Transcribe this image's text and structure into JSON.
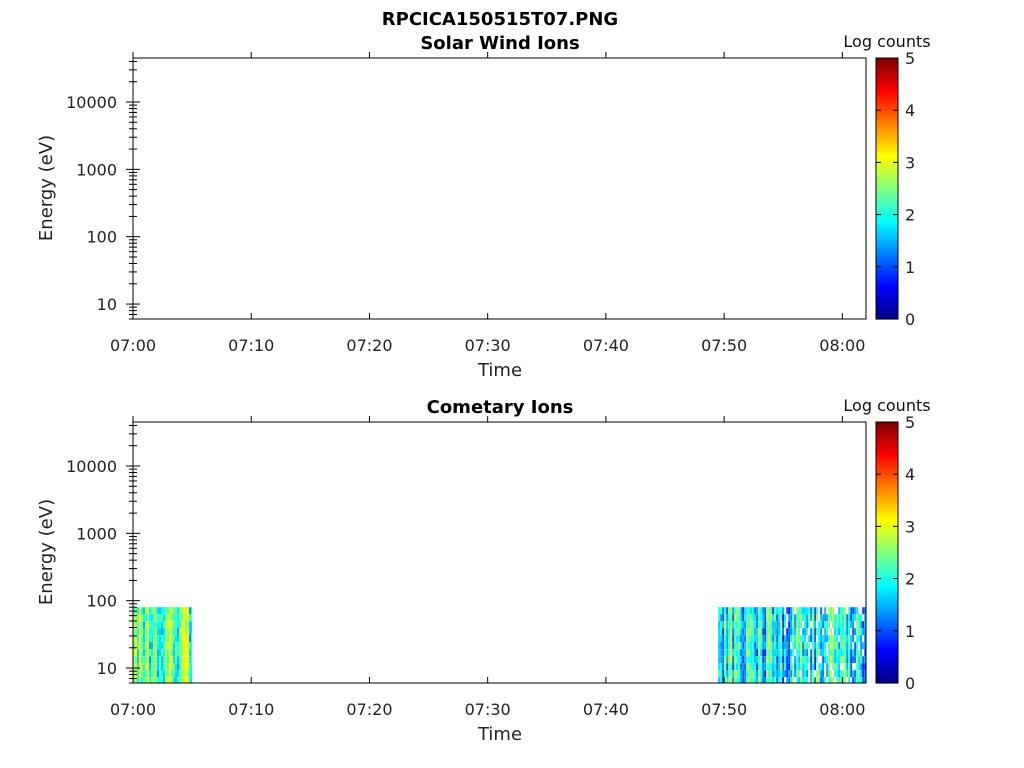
{
  "figure": {
    "title": "RPCICA150515T07.PNG"
  },
  "colormap": {
    "name": "jet",
    "stops": [
      "#000080",
      "#0000ff",
      "#00ffff",
      "#ffff00",
      "#ff0000",
      "#800000"
    ]
  },
  "chart_data": [
    {
      "type": "heatmap",
      "title": "Solar Wind Ions",
      "xlabel": "Time",
      "ylabel": "Energy (eV)",
      "xlim": [
        "07:00",
        "08:02"
      ],
      "x_ticks": [
        "07:00",
        "07:10",
        "07:20",
        "07:30",
        "07:40",
        "07:50",
        "08:00"
      ],
      "y_scale": "log",
      "ylim": [
        6,
        45000
      ],
      "y_ticks": [
        10,
        100,
        1000,
        10000
      ],
      "y_tick_labels": [
        "10",
        "100",
        "1000",
        "10000"
      ],
      "colorbar": {
        "title": "Log counts",
        "range": [
          0,
          5
        ],
        "ticks": [
          "0",
          "1",
          "2",
          "3",
          "4",
          "5"
        ]
      },
      "data_blocks": []
    },
    {
      "type": "heatmap",
      "title": "Cometary Ions",
      "xlabel": "Time",
      "ylabel": "Energy (eV)",
      "xlim": [
        "07:00",
        "08:02"
      ],
      "x_ticks": [
        "07:00",
        "07:10",
        "07:20",
        "07:30",
        "07:40",
        "07:50",
        "08:00"
      ],
      "y_scale": "log",
      "ylim": [
        6,
        45000
      ],
      "y_ticks": [
        10,
        100,
        1000,
        10000
      ],
      "y_tick_labels": [
        "10",
        "100",
        "1000",
        "10000"
      ],
      "colorbar": {
        "title": "Log counts",
        "range": [
          0,
          5
        ],
        "ticks": [
          "0",
          "1",
          "2",
          "3",
          "4",
          "5"
        ]
      },
      "data_blocks": [
        {
          "start": "07:00",
          "end": "07:05",
          "energy_range": [
            6,
            80
          ],
          "log_counts_range": [
            1.0,
            3.2
          ],
          "typical_log_counts": 2.3
        },
        {
          "start": "07:49:30",
          "end": "08:02",
          "energy_range": [
            6,
            80
          ],
          "log_counts_range": [
            0.5,
            3.5
          ],
          "typical_log_counts": 1.8
        }
      ]
    }
  ]
}
